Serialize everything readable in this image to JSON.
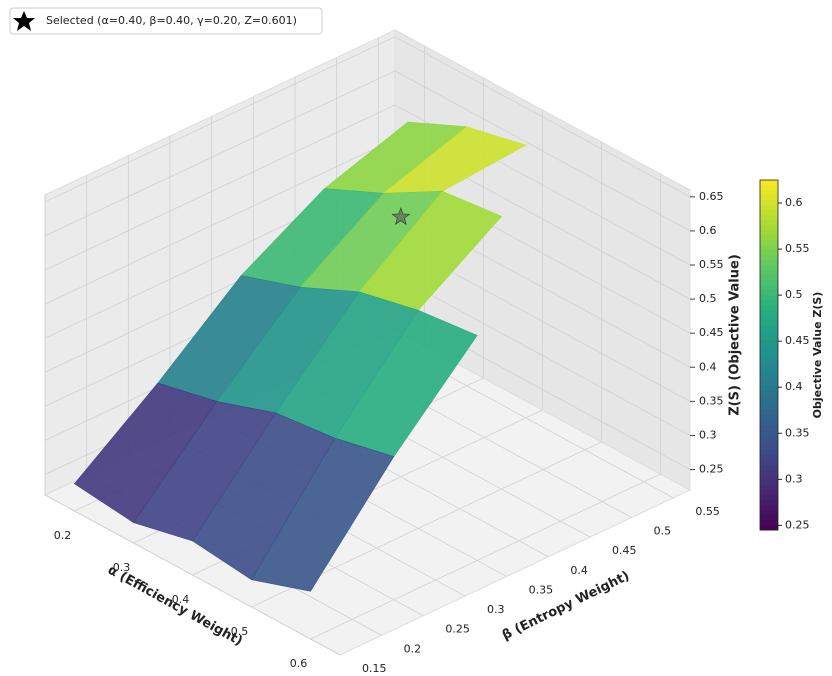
{
  "chart_data": {
    "type": "surface3d",
    "legend": {
      "label": "Selected (α=0.40, β=0.40, γ=0.20, Z=0.601)",
      "corner": "upper left"
    },
    "xlabel": "α (Efficiency Weight)",
    "ylabel": "β (Entropy Weight)",
    "zlabel": "Z(S) (Objective Value)",
    "colorbar_label": "Objective Value Z(S)",
    "colormap": "viridis",
    "xlim": [
      0.15,
      0.65
    ],
    "ylim": [
      0.15,
      0.57
    ],
    "zlim": [
      0.22,
      0.66
    ],
    "xticks": [
      0.2,
      0.3,
      0.4,
      0.5,
      0.6
    ],
    "yticks": [
      0.15,
      0.2,
      0.25,
      0.3,
      0.35,
      0.4,
      0.45,
      0.5,
      0.55
    ],
    "zticks": [
      0.25,
      0.3,
      0.35,
      0.4,
      0.45,
      0.5,
      0.55,
      0.6,
      0.65
    ],
    "clim": [
      0.245,
      0.625
    ],
    "cticks": [
      0.25,
      0.3,
      0.35,
      0.4,
      0.45,
      0.5,
      0.55,
      0.6
    ],
    "grid": true,
    "surface": {
      "x": [
        0.2,
        0.3,
        0.4,
        0.5,
        0.6
      ],
      "y": [
        0.15,
        0.25,
        0.35,
        0.45,
        0.55
      ],
      "z": [
        [
          0.26,
          0.35,
          0.45,
          0.52,
          0.56
        ],
        [
          0.25,
          0.37,
          0.48,
          0.56,
          0.6
        ],
        [
          0.27,
          0.4,
          0.52,
          0.61,
          0.62
        ],
        [
          0.26,
          0.41,
          0.54,
          0.62,
          null
        ],
        [
          0.29,
          0.43,
          0.55,
          null,
          null
        ]
      ]
    },
    "selected": {
      "x": 0.4,
      "y": 0.4,
      "z": 0.601
    }
  }
}
